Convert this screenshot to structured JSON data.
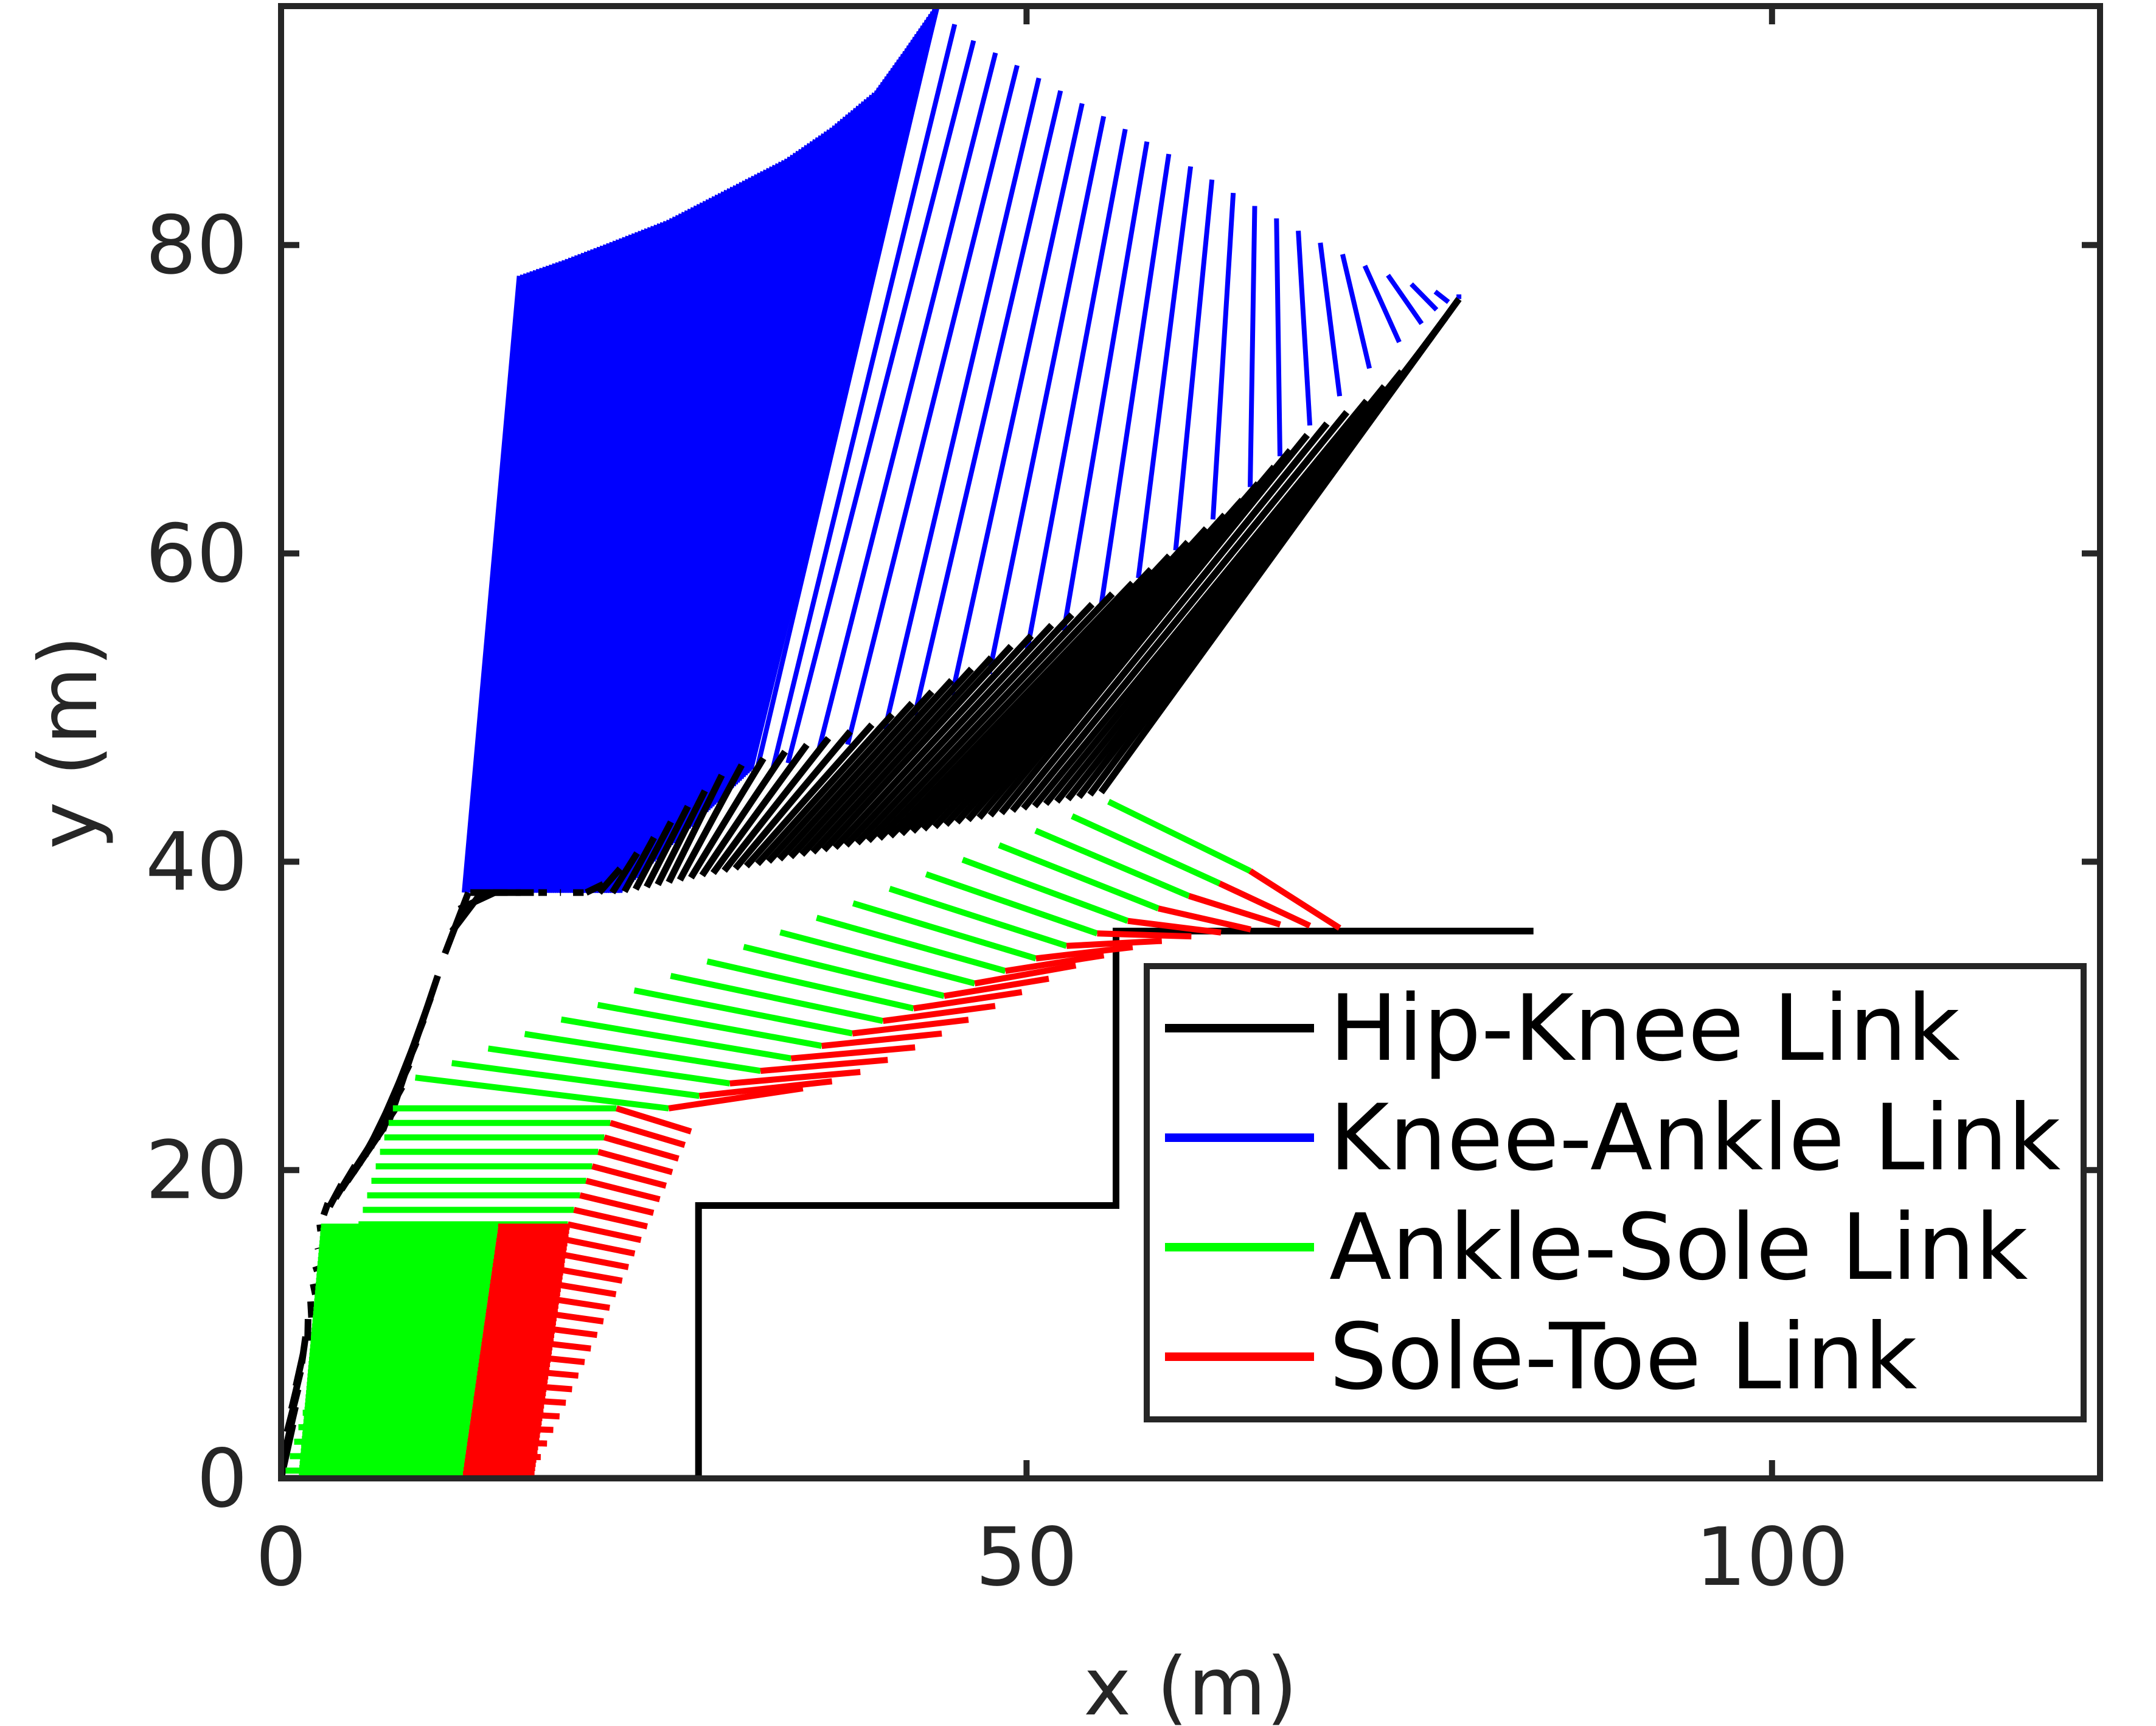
{
  "chart_data": {
    "type": "line",
    "title": "",
    "xlabel": "x (m)",
    "ylabel": "y (m)",
    "xlim": [
      0,
      122
    ],
    "ylim": [
      0,
      95.5
    ],
    "xticks": [
      0,
      50,
      100
    ],
    "yticks": [
      0,
      20,
      40,
      60,
      80
    ],
    "grid": false,
    "legend_position": "lower-right",
    "series": [
      {
        "name": "Hip-Knee Link",
        "color": "#000000"
      },
      {
        "name": "Knee-Ankle Link",
        "color": "#0000ff"
      },
      {
        "name": "Ankle-Sole Link",
        "color": "#00ff00"
      },
      {
        "name": "Sole-Toe Link",
        "color": "#ff0000"
      }
    ],
    "terrain": {
      "color": "#000000",
      "points": [
        [
          0,
          0
        ],
        [
          28,
          0
        ],
        [
          28,
          17.7
        ],
        [
          56,
          17.7
        ],
        [
          56,
          35.5
        ],
        [
          84,
          35.5
        ]
      ]
    },
    "hip_path": [
      [
        0,
        0
      ],
      [
        0.4,
        3
      ],
      [
        1,
        6
      ],
      [
        1.8,
        9
      ],
      [
        2.4,
        12.5
      ],
      [
        2.5,
        16
      ],
      [
        2.8,
        17.4
      ],
      [
        4,
        19
      ],
      [
        5.5,
        21
      ],
      [
        7.5,
        23.5
      ],
      [
        12.3,
        38
      ],
      [
        21,
        38
      ],
      [
        30,
        46
      ],
      [
        40,
        49
      ],
      [
        49,
        54
      ],
      [
        57,
        58
      ],
      [
        64,
        63
      ],
      [
        68.5,
        67.5
      ],
      [
        73,
        70
      ],
      [
        76,
        72.5
      ],
      [
        79,
        76.5
      ]
    ],
    "ankle_path_early": [
      [
        16,
        78
      ],
      [
        19,
        79
      ],
      [
        22,
        80.1
      ],
      [
        26,
        81.6
      ],
      [
        30,
        83.6
      ],
      [
        34,
        85.6
      ],
      [
        37,
        87.6
      ],
      [
        40,
        90
      ],
      [
        42,
        92.7
      ],
      [
        44,
        95.5
      ]
    ],
    "ankle_path_late": [
      [
        44,
        95.5
      ],
      [
        46,
        93.5
      ],
      [
        47.5,
        92.7
      ],
      [
        50,
        91.3
      ],
      [
        53,
        89.6
      ],
      [
        57,
        87.3
      ],
      [
        61,
        85.1
      ],
      [
        65,
        82.7
      ],
      [
        69,
        80.5
      ],
      [
        73,
        78.5
      ],
      [
        76,
        77.4
      ],
      [
        79,
        76.5
      ]
    ],
    "late_knees": [
      [
        32,
        46.3
      ],
      [
        33,
        46.1
      ],
      [
        34,
        46.4
      ],
      [
        36,
        47
      ],
      [
        38,
        47.6
      ],
      [
        40.5,
        48.6
      ],
      [
        42.5,
        49.5
      ],
      [
        45,
        50.8
      ],
      [
        47.5,
        52.2
      ],
      [
        50,
        53.5
      ],
      [
        52.5,
        55
      ],
      [
        55,
        56.6
      ],
      [
        57.5,
        58.4
      ],
      [
        60,
        60.2
      ],
      [
        62.5,
        62.2
      ],
      [
        65,
        64.3
      ],
      [
        67,
        66.3
      ],
      [
        69,
        68.3
      ],
      [
        71,
        70.2
      ],
      [
        73,
        72
      ],
      [
        75,
        73.7
      ],
      [
        76.5,
        74.9
      ],
      [
        77.5,
        75.8
      ],
      [
        78.3,
        76.3
      ],
      [
        79,
        76.8
      ]
    ],
    "sole_path": [
      [
        27,
        36.2
      ],
      [
        32,
        38
      ],
      [
        37,
        40.2
      ],
      [
        40.5,
        42
      ],
      [
        44,
        43
      ],
      [
        47,
        43.7
      ],
      [
        49.8,
        44
      ],
      [
        52,
        44.1
      ],
      [
        54.5,
        44.1
      ],
      [
        55.5,
        43.9
      ]
    ],
    "toe_path": [
      [
        35,
        25.3
      ],
      [
        38,
        26
      ],
      [
        42,
        27.7
      ],
      [
        46,
        29.7
      ],
      [
        50,
        31.7
      ],
      [
        54,
        33.6
      ],
      [
        58,
        34.7
      ],
      [
        62,
        35.3
      ],
      [
        65,
        35.6
      ],
      [
        67.5,
        36
      ],
      [
        69.5,
        35.8
      ],
      [
        71,
        35.7
      ]
    ]
  }
}
